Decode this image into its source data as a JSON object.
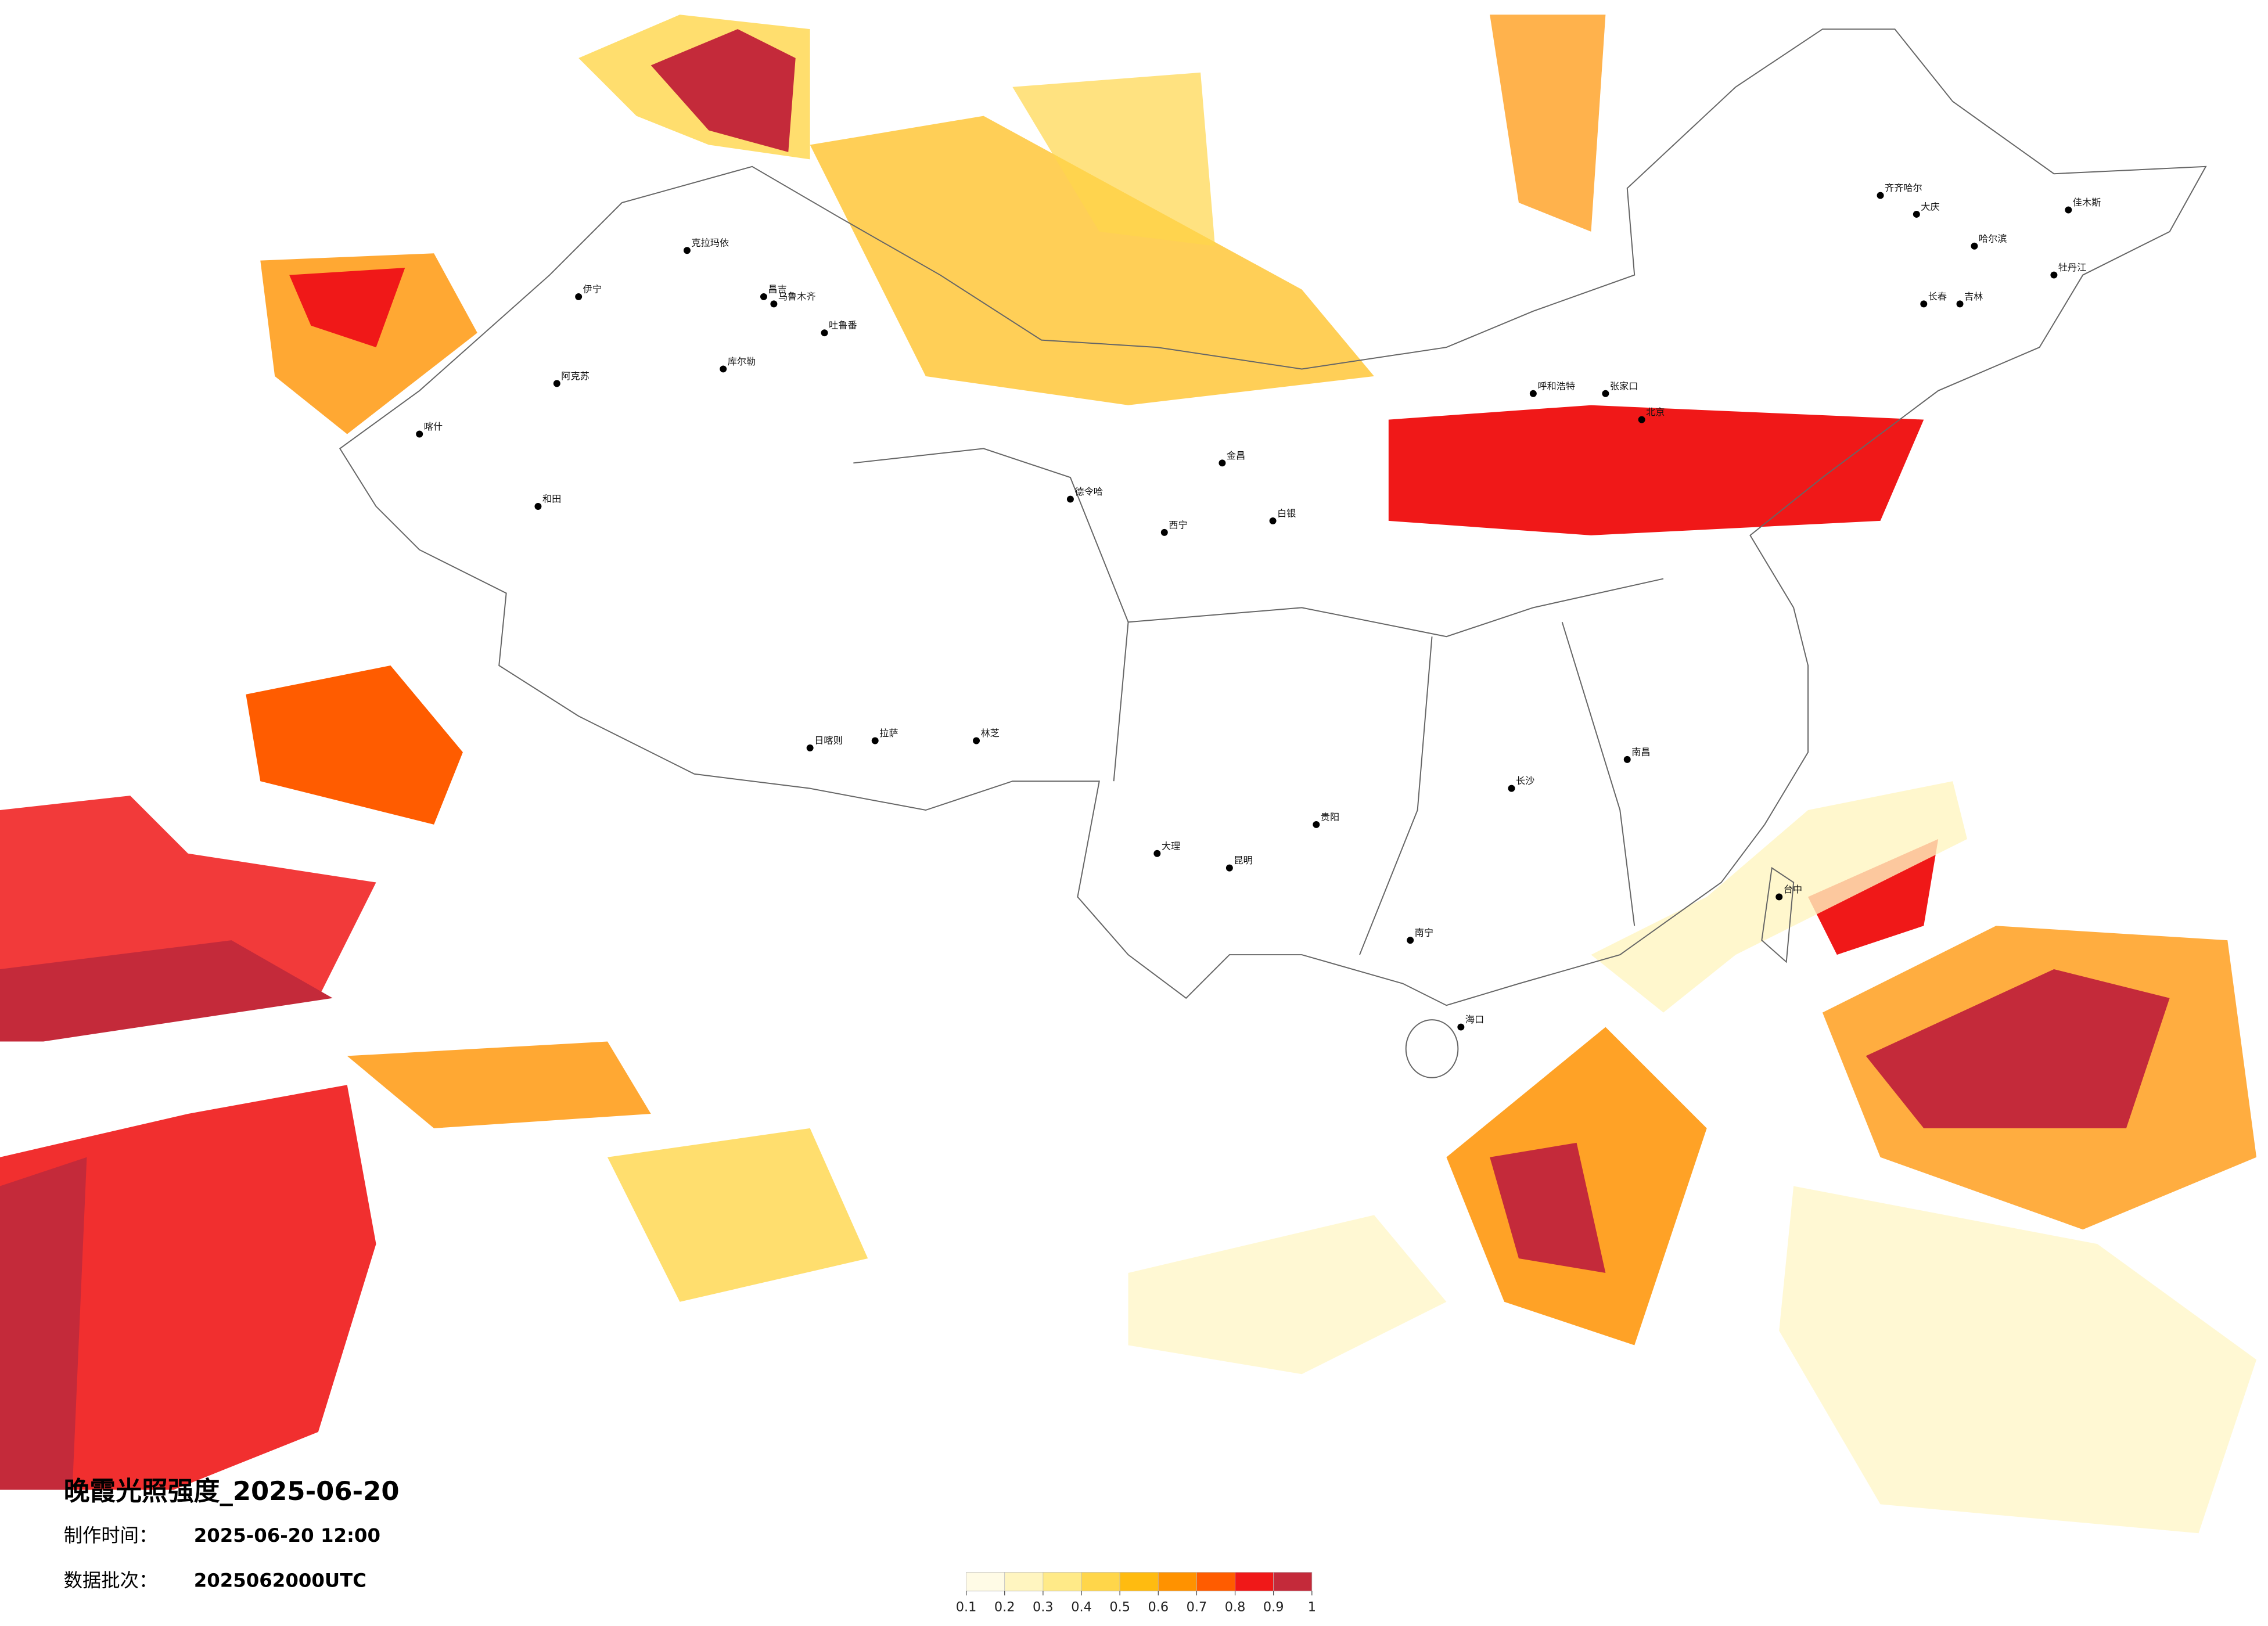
{
  "title": "晚霞光照强度_2025-06-20",
  "made_label": "制作时间：",
  "made_time": "2025-06-20 12:00",
  "batch_label": "数据批次：",
  "batch": "2025062000UTC",
  "colorbar": {
    "ticks": [
      0.1,
      0.2,
      0.3,
      0.4,
      0.5,
      0.6,
      0.7,
      0.8,
      0.9,
      1
    ],
    "colors": [
      "#fffbe6",
      "#fff5c0",
      "#ffea88",
      "#ffd64a",
      "#ffbb10",
      "#ff9200",
      "#ff5c00",
      "#f01818",
      "#c42a3a"
    ]
  },
  "cities": [
    "喀什",
    "和田",
    "阿克苏",
    "伊宁",
    "克拉玛依",
    "乌鲁木齐",
    "昌吉",
    "吐鲁番",
    "库尔勒",
    "日喀则",
    "拉萨",
    "林芝",
    "德令哈",
    "西宁",
    "金昌",
    "白银",
    "呼和浩特",
    "张家口",
    "北京",
    "长沙",
    "南昌",
    "南宁",
    "海口",
    "贵阳",
    "昆明",
    "大理",
    "齐齐哈尔",
    "大庆",
    "哈尔滨",
    "长春",
    "吉林",
    "佳木斯",
    "台中",
    "牡丹江"
  ]
}
